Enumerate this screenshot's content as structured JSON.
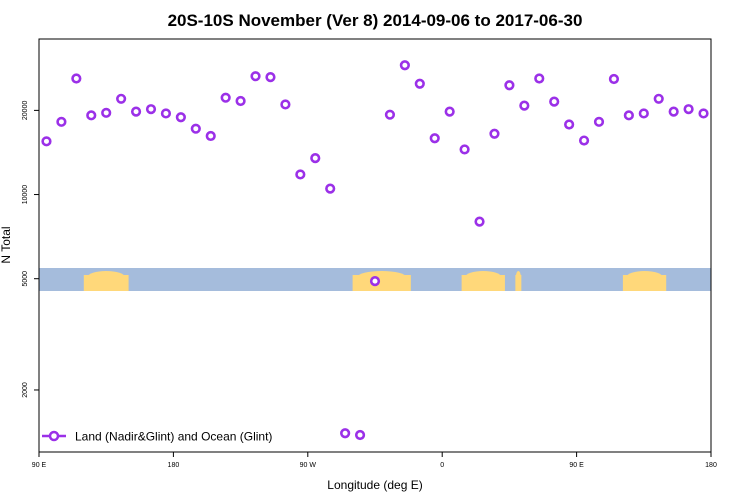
{
  "chart_data": {
    "type": "scatter",
    "title": "20S-10S November (Ver 8)   2014-09-06 to 2017-06-30",
    "xlabel": "Longitude (deg E)",
    "ylabel": "N Total",
    "x_scale": "linear",
    "y_scale": "log",
    "xlim": [
      90,
      540
    ],
    "ylim": [
      1200,
      36000
    ],
    "x_ticks": [
      {
        "value": 90,
        "label": "90 E"
      },
      {
        "value": 180,
        "label": "180"
      },
      {
        "value": 270,
        "label": "90 W"
      },
      {
        "value": 360,
        "label": "0"
      },
      {
        "value": 450,
        "label": "90 E"
      },
      {
        "value": 540,
        "label": "180"
      }
    ],
    "y_ticks": [
      {
        "value": 2000,
        "label": "2000"
      },
      {
        "value": 5000,
        "label": "5000"
      },
      {
        "value": 10000,
        "label": "10000"
      },
      {
        "value": 20000,
        "label": "20000"
      }
    ],
    "series": [
      {
        "name": "Land (Nadir&Glint) and Ocean (Glint)",
        "color": "#9b30e8",
        "x": [
          95,
          105,
          115,
          125,
          135,
          145,
          155,
          165,
          175,
          185,
          195,
          205,
          215,
          225,
          235,
          245,
          255,
          265,
          275,
          285,
          295,
          305,
          315,
          325,
          335,
          345,
          355,
          365,
          375,
          385,
          395,
          405,
          415,
          425,
          435,
          445,
          455,
          465,
          475,
          485,
          495,
          505,
          515,
          525,
          535
        ],
        "y": [
          15500,
          18200,
          26000,
          19200,
          19600,
          22000,
          19800,
          20200,
          19500,
          18900,
          17200,
          16200,
          22200,
          21600,
          26500,
          26300,
          21000,
          11800,
          13500,
          10500,
          1400,
          1380,
          4900,
          19300,
          29000,
          24900,
          15900,
          19800,
          14500,
          8000,
          16500,
          24600,
          20800,
          26000,
          21500,
          17800,
          15600,
          18200,
          25900,
          19200,
          19500,
          22000,
          19800,
          20200,
          19500
        ]
      }
    ],
    "legend": {
      "position": "bottom-left",
      "entries": [
        "Land (Nadir&Glint) and Ocean (Glint)"
      ]
    },
    "grid": false,
    "map_strip": {
      "ocean_color": "#a5bcdc",
      "land_color": "#ffd87a",
      "land_ranges_deg_e": [
        [
          120,
          150
        ],
        [
          300,
          339
        ],
        [
          373,
          402
        ],
        [
          409,
          413
        ],
        [
          481,
          510
        ]
      ]
    }
  }
}
